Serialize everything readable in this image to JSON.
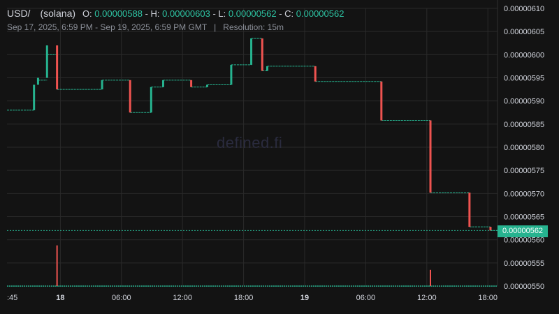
{
  "header": {
    "symbol": "USD/",
    "chain": "(solana)",
    "o_label": "O:",
    "o_value": "0.00000588",
    "h_label": "H:",
    "h_value": "0.00000603",
    "l_label": "L:",
    "l_value": "0.00000562",
    "c_label": "C:",
    "c_value": "0.00000562",
    "date_range": "Sep 17, 2025, 6:59 PM - Sep 19, 2025, 6:59 PM GMT",
    "separator": "|",
    "resolution": "Resolution: 15m"
  },
  "watermark": "defined.fi",
  "last_price_label": "0.00000562",
  "colors": {
    "background": "#131313",
    "grid": "#2a2a2a",
    "up": "#26b38f",
    "down": "#ef5350",
    "text": "#d1d4dc",
    "last_price": "#26b38f"
  },
  "chart_data": {
    "type": "candlestick",
    "y_ticks": [
      "0.00000610",
      "0.00000605",
      "0.00000600",
      "0.00000595",
      "0.00000590",
      "0.00000585",
      "0.00000580",
      "0.00000575",
      "0.00000570",
      "0.00000565",
      "0.00000560",
      "0.00000555",
      "0.00000550"
    ],
    "x_ticks": [
      {
        "label": ":45",
        "bold": false
      },
      {
        "label": "18",
        "bold": true
      },
      {
        "label": "06:00",
        "bold": false
      },
      {
        "label": "12:00",
        "bold": false
      },
      {
        "label": "18:00",
        "bold": false
      },
      {
        "label": "19",
        "bold": true
      },
      {
        "label": "06:00",
        "bold": false
      },
      {
        "label": "12:00",
        "bold": false
      },
      {
        "label": "18:00",
        "bold": false
      }
    ],
    "ylim": [
      5.5e-06,
      6.1e-06
    ],
    "last_price": 5.62e-06,
    "segments": [
      {
        "level": 5.88e-06,
        "from": 0.0,
        "to": 2.7
      },
      {
        "level": 5.945e-06,
        "from": 3.1,
        "to": 4.0
      },
      {
        "level": 6e-06,
        "from": 4.0,
        "to": 5.0
      },
      {
        "level": 5.925e-06,
        "from": 5.0,
        "to": 9.5
      },
      {
        "level": 5.945e-06,
        "from": 9.5,
        "to": 12.3
      },
      {
        "level": 5.875e-06,
        "from": 12.3,
        "to": 14.4
      },
      {
        "level": 5.93e-06,
        "from": 14.4,
        "to": 15.6
      },
      {
        "level": 5.945e-06,
        "from": 15.6,
        "to": 18.4
      },
      {
        "level": 5.93e-06,
        "from": 18.4,
        "to": 20.0
      },
      {
        "level": 5.935e-06,
        "from": 20.0,
        "to": 22.4
      },
      {
        "level": 5.978e-06,
        "from": 22.4,
        "to": 24.4
      },
      {
        "level": 6.035e-06,
        "from": 24.4,
        "to": 25.5
      },
      {
        "level": 5.965e-06,
        "from": 25.5,
        "to": 26.0
      },
      {
        "level": 5.975e-06,
        "from": 26.0,
        "to": 30.8
      },
      {
        "level": 5.942e-06,
        "from": 30.8,
        "to": 37.4
      },
      {
        "level": 5.858e-06,
        "from": 37.4,
        "to": 42.3
      },
      {
        "level": 5.702e-06,
        "from": 42.3,
        "to": 46.2
      },
      {
        "level": 5.628e-06,
        "from": 46.2,
        "to": 48.3
      },
      {
        "level": 5.62e-06,
        "from": 48.3,
        "to": 49.0
      }
    ],
    "candles": [
      {
        "t": 2.7,
        "open": 5.88e-06,
        "close": 5.935e-06
      },
      {
        "t": 3.1,
        "open": 5.935e-06,
        "close": 5.95e-06
      },
      {
        "t": 4.0,
        "open": 5.95e-06,
        "close": 6.02e-06
      },
      {
        "t": 5.0,
        "open": 6.02e-06,
        "close": 5.925e-06
      },
      {
        "t": 9.5,
        "open": 5.925e-06,
        "close": 5.945e-06
      },
      {
        "t": 12.3,
        "open": 5.945e-06,
        "close": 5.875e-06
      },
      {
        "t": 14.4,
        "open": 5.875e-06,
        "close": 5.93e-06
      },
      {
        "t": 15.6,
        "open": 5.93e-06,
        "close": 5.945e-06
      },
      {
        "t": 18.4,
        "open": 5.945e-06,
        "close": 5.93e-06
      },
      {
        "t": 20.0,
        "open": 5.93e-06,
        "close": 5.935e-06
      },
      {
        "t": 22.4,
        "open": 5.935e-06,
        "close": 5.978e-06
      },
      {
        "t": 24.4,
        "open": 5.978e-06,
        "close": 6.035e-06
      },
      {
        "t": 25.5,
        "open": 6.035e-06,
        "close": 5.965e-06
      },
      {
        "t": 26.0,
        "open": 5.965e-06,
        "close": 5.975e-06
      },
      {
        "t": 30.8,
        "open": 5.975e-06,
        "close": 5.942e-06
      },
      {
        "t": 37.4,
        "open": 5.942e-06,
        "close": 5.858e-06
      },
      {
        "t": 42.3,
        "open": 5.858e-06,
        "close": 5.702e-06
      },
      {
        "t": 46.2,
        "open": 5.702e-06,
        "close": 5.628e-06
      },
      {
        "t": 48.3,
        "open": 5.628e-06,
        "close": 5.62e-06
      }
    ],
    "volume_spikes": [
      {
        "t": 5.0,
        "level": 5.588e-06,
        "direction": "down"
      },
      {
        "t": 42.3,
        "level": 5.535e-06,
        "direction": "down"
      }
    ]
  }
}
